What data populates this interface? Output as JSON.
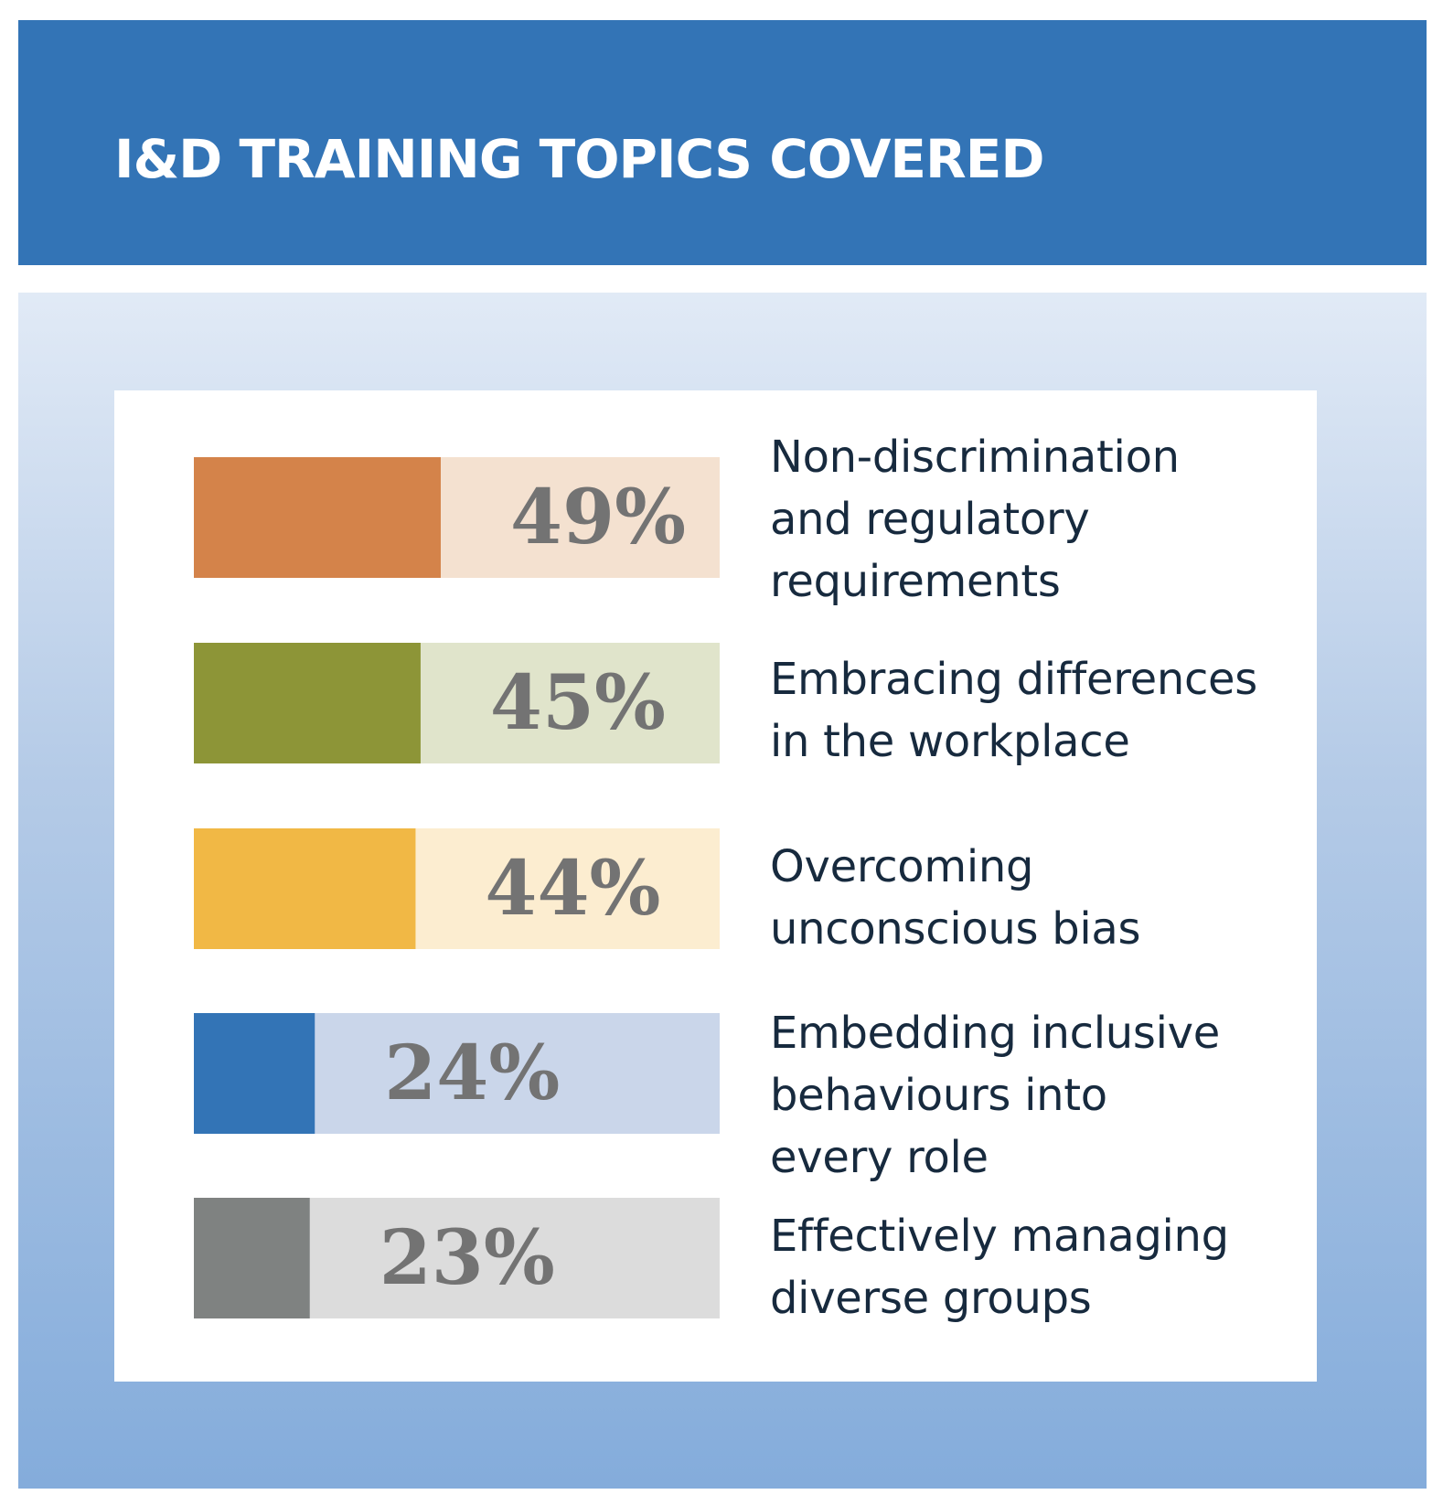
{
  "header": {
    "title": "I&D TRAINING TOPICS COVERED"
  },
  "chart_data": {
    "type": "bar",
    "orientation": "horizontal",
    "title": "I&D TRAINING TOPICS COVERED",
    "xlim": [
      0,
      100
    ],
    "categories": [
      "Non-discrimination and regulatory requirements",
      "Embracing differences in the workplace",
      "Overcoming unconscious bias",
      "Embedding inclusive behaviours into every role",
      "Effectively managing diverse groups"
    ],
    "values": [
      49,
      45,
      44,
      24,
      23
    ],
    "value_labels": [
      "49%",
      "45%",
      "44%",
      "24%",
      "23%"
    ],
    "label_lines": [
      [
        "Non-discrimination",
        "and regulatory",
        "requirements"
      ],
      [
        "Embracing differences",
        "in the workplace"
      ],
      [
        "Overcoming",
        "unconscious bias"
      ],
      [
        "Embedding inclusive",
        "behaviours into",
        "every role"
      ],
      [
        "Effectively managing",
        "diverse groups"
      ]
    ],
    "colors": [
      "#d4834a",
      "#8d9537",
      "#f1b845",
      "#3374b6",
      "#7f8281"
    ],
    "track_colors": [
      "#f4e1d0",
      "#e0e4cb",
      "#fcedd0",
      "#cad6ea",
      "#dcdcdc"
    ],
    "value_label_color": "#737373",
    "grid": false,
    "legend": "none"
  }
}
